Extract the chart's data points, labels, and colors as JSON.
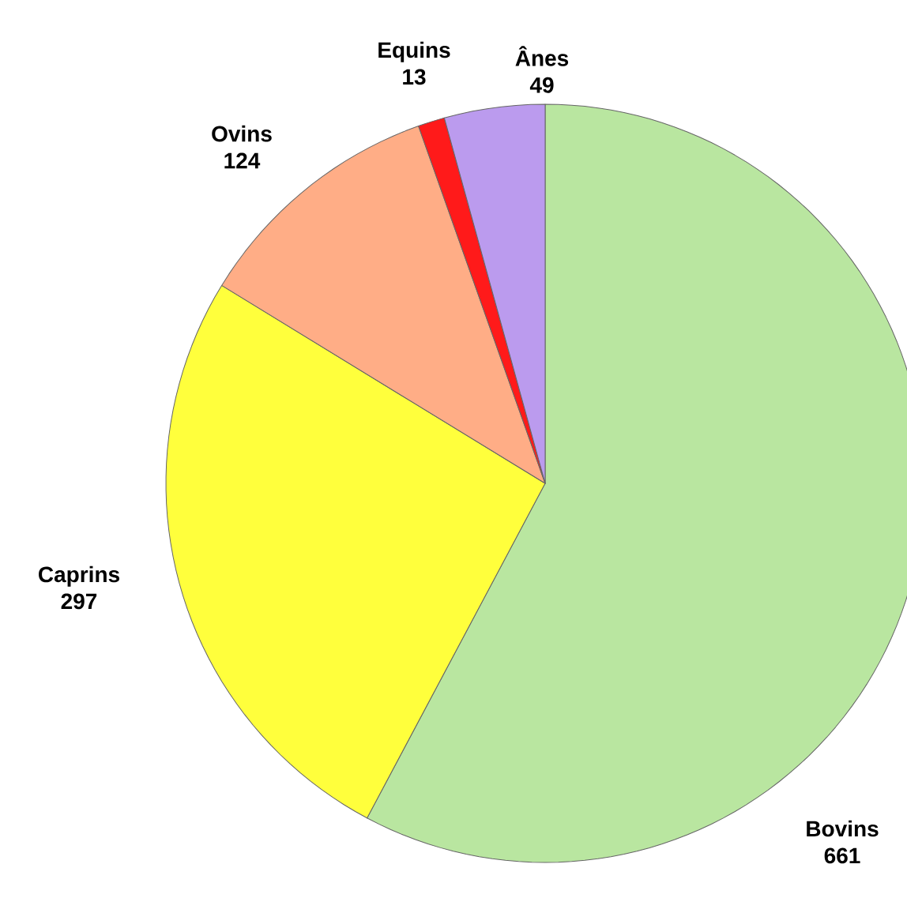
{
  "chart_data": {
    "type": "pie",
    "categories": [
      "Bovins",
      "Caprins",
      "Ovins",
      "Equins",
      "Ânes"
    ],
    "values": [
      661,
      297,
      124,
      13,
      49
    ],
    "colors": [
      "#b9e6a0",
      "#ffff3c",
      "#ffad86",
      "#ff1a1a",
      "#bb9bee"
    ],
    "data_labels": true
  }
}
